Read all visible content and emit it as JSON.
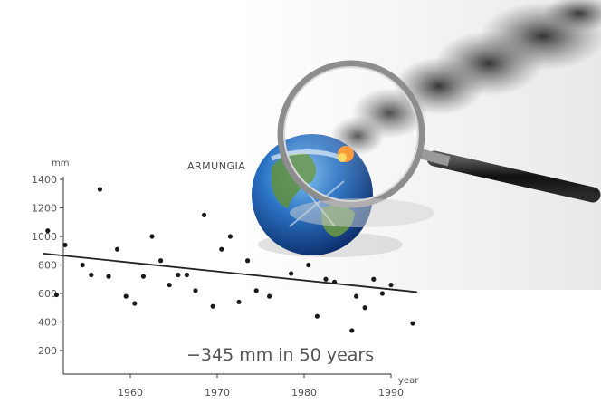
{
  "chart_data": {
    "type": "scatter",
    "title": "",
    "xlabel": "year",
    "ylabel": "mm",
    "xlim": [
      1950,
      1995
    ],
    "ylim": [
      0,
      1450
    ],
    "yticks": [
      200,
      400,
      600,
      800,
      1000,
      1200,
      1400
    ],
    "xticks": [
      1960,
      1970,
      1980,
      1990
    ],
    "grid": false,
    "place_label": "ARMUNGIA",
    "annotation": "−345 mm in 50 years",
    "series": [
      {
        "points": [
          [
            1950.5,
            1040
          ],
          [
            1951.5,
            590
          ],
          [
            1952.5,
            940
          ],
          [
            1954.5,
            800
          ],
          [
            1955.5,
            730
          ],
          [
            1956.5,
            1330
          ],
          [
            1957.5,
            720
          ],
          [
            1958.5,
            910
          ],
          [
            1959.5,
            580
          ],
          [
            1960.5,
            530
          ],
          [
            1961.5,
            720
          ],
          [
            1962.5,
            1000
          ],
          [
            1963.5,
            830
          ],
          [
            1964.5,
            660
          ],
          [
            1965.5,
            730
          ],
          [
            1966.5,
            730
          ],
          [
            1967.5,
            620
          ],
          [
            1968.5,
            1150
          ],
          [
            1969.5,
            510
          ],
          [
            1970.5,
            910
          ],
          [
            1971.5,
            1000
          ],
          [
            1972.5,
            540
          ],
          [
            1973.5,
            830
          ],
          [
            1974.5,
            620
          ],
          [
            1976.0,
            580
          ],
          [
            1978.5,
            740
          ],
          [
            1980.5,
            800
          ],
          [
            1981.5,
            440
          ],
          [
            1982.5,
            700
          ],
          [
            1983.5,
            680
          ],
          [
            1985.5,
            340
          ],
          [
            1986.0,
            580
          ],
          [
            1987.0,
            500
          ],
          [
            1988.0,
            700
          ],
          [
            1989.0,
            600
          ],
          [
            1990.0,
            660
          ],
          [
            1992.5,
            390
          ]
        ]
      }
    ],
    "trend": {
      "x": [
        1950,
        1993
      ],
      "y": [
        880,
        610
      ]
    }
  },
  "globe_icon": "earth-globe-icon",
  "magnifier_icon": "magnifying-glass-icon",
  "smoke_icon": "smoke-plume-icon"
}
